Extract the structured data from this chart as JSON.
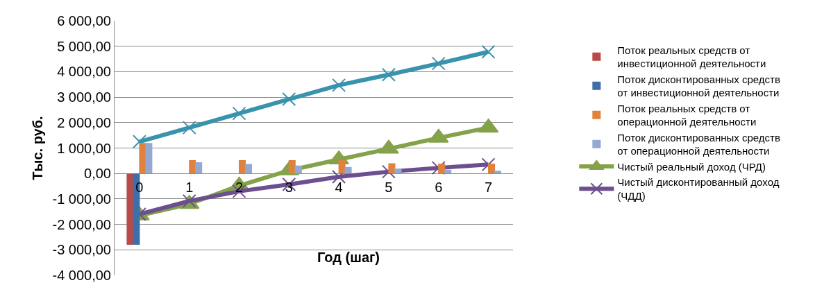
{
  "chart_data": {
    "type": "bar",
    "xlabel": "Год (шаг)",
    "ylabel": "Тыс. руб.",
    "categories": [
      "0",
      "1",
      "2",
      "3",
      "4",
      "5",
      "6",
      "7"
    ],
    "series": [
      {
        "name": "Поток реальных средств от инвестиционной деятельности",
        "color": "#b94a48",
        "values": [
          -2800,
          null,
          null,
          null,
          null,
          null,
          null,
          null
        ]
      },
      {
        "name": "Поток дисконтированных средств от инвестиционной деятельности",
        "color": "#3f6fa8",
        "values": [
          -2800,
          null,
          null,
          null,
          null,
          null,
          null,
          null
        ]
      },
      {
        "name": "Поток реальных средств от операционной деятельности",
        "color": "#e0823e",
        "values": [
          1200,
          520,
          520,
          520,
          520,
          400,
          390,
          390
        ]
      },
      {
        "name": "Поток дисконтированных средств от операционной деятельности",
        "color": "#93a9d4",
        "values": [
          1200,
          440,
          370,
          310,
          260,
          190,
          150,
          110
        ]
      },
      {
        "type": "line",
        "color": "#3a93ad",
        "marker": "cross",
        "values": [
          1250,
          1800,
          2360,
          2920,
          3470,
          3880,
          4320,
          4780
        ]
      },
      {
        "type": "line",
        "name": "Чистый реальный доход (ЧРД)",
        "color": "#84a24a",
        "marker": "triangle",
        "values": [
          -1650,
          -1200,
          -480,
          120,
          550,
          970,
          1400,
          1800
        ]
      },
      {
        "type": "line",
        "name": "Чистый дисконтированный доход (ЧДД)",
        "color": "#6c4f8e",
        "marker": "cross",
        "values": [
          -1600,
          -1080,
          -700,
          -430,
          -130,
          70,
          220,
          350
        ]
      }
    ],
    "ylim": [
      -4000,
      6000
    ],
    "yticks": [
      {
        "value": -4000,
        "label": "-4 000,00"
      },
      {
        "value": -3000,
        "label": "-3 000,00"
      },
      {
        "value": -2000,
        "label": "-2 000,00"
      },
      {
        "value": -1000,
        "label": "-1 000,00"
      },
      {
        "value": 0,
        "label": "0,00"
      },
      {
        "value": 1000,
        "label": "1 000,00"
      },
      {
        "value": 2000,
        "label": "2 000,00"
      },
      {
        "value": 3000,
        "label": "3 000,00"
      },
      {
        "value": 4000,
        "label": "4 000,00"
      },
      {
        "value": 5000,
        "label": "5 000,00"
      },
      {
        "value": 6000,
        "label": "6 000,00"
      }
    ],
    "grid": "y",
    "legend": "right"
  }
}
